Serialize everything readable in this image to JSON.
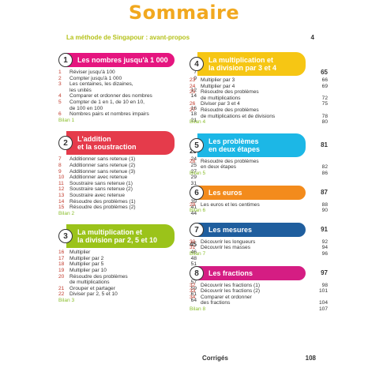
{
  "title": "Sommaire",
  "intro": {
    "text": "La méthode de Singapour : avant-propos",
    "page": "4"
  },
  "colors": {
    "title": "#f1a81f",
    "intro": "#b5c21a",
    "row_number": "#c0392b",
    "bilan": "#8bbe2e"
  },
  "left_sections": [
    {
      "num": "1",
      "title": "Les nombres jusqu'à 1 000",
      "page": "6",
      "items": [
        {
          "n": "1",
          "t": "Réviser jusqu'à 100",
          "p": "7"
        },
        {
          "n": "2",
          "t": "Compter jusqu'à 1 000",
          "p": "9"
        },
        {
          "n": "3",
          "t": "Les centaines, les dizaines,",
          "p": ""
        },
        {
          "n": "",
          "t": "les unités",
          "p": "12"
        },
        {
          "n": "4",
          "t": "Comparer et ordonner des nombres",
          "p": "14"
        },
        {
          "n": "5",
          "t": "Compter de 1 en 1, de 10 en 10,",
          "p": ""
        },
        {
          "n": "",
          "t": "de 100 en 100",
          "p": "16"
        },
        {
          "n": "6",
          "t": "Nombres pairs et nombres impairs",
          "p": "18"
        },
        {
          "n": "",
          "t": "Bilan 1",
          "p": "21"
        }
      ]
    },
    {
      "num": "2",
      "title_line1": "L'addition",
      "title_line2": "et la soustraction",
      "page": "23",
      "items": [
        {
          "n": "7",
          "t": "Additionner sans retenue (1)",
          "p": "24"
        },
        {
          "n": "8",
          "t": "Additionner sans retenue (2)",
          "p": "25"
        },
        {
          "n": "9",
          "t": "Additionner sans retenue (3)",
          "p": "27"
        },
        {
          "n": "10",
          "t": "Additionner avec retenue",
          "p": "29"
        },
        {
          "n": "11",
          "t": "Soustraire sans retenue (1)",
          "p": "31"
        },
        {
          "n": "12",
          "t": "Soustraire sans retenue (2)",
          "p": "34"
        },
        {
          "n": "13",
          "t": "Soustraire avec retenue",
          "p": "36"
        },
        {
          "n": "14",
          "t": "Résoudre des problèmes (1)",
          "p": "39"
        },
        {
          "n": "15",
          "t": "Résoudre des problèmes (2)",
          "p": "41"
        },
        {
          "n": "",
          "t": "Bilan 2",
          "p": "44"
        }
      ]
    },
    {
      "num": "3",
      "title_line1": "La multiplication et",
      "title_line2": "la division par 2, 5 et 10",
      "page": "45",
      "items": [
        {
          "n": "16",
          "t": "Multiplier",
          "p": "46"
        },
        {
          "n": "17",
          "t": "Multiplier par 2",
          "p": "48"
        },
        {
          "n": "18",
          "t": "Multiplier par 5",
          "p": "51"
        },
        {
          "n": "19",
          "t": "Multiplier par 10",
          "p": "54"
        },
        {
          "n": "20",
          "t": "Résoudre des problèmes",
          "p": ""
        },
        {
          "n": "",
          "t": "de multiplications",
          "p": "57"
        },
        {
          "n": "21",
          "t": "Grouper et partager",
          "p": "59"
        },
        {
          "n": "22",
          "t": "Diviser par 2, 5 et 10",
          "p": "61"
        },
        {
          "n": "",
          "t": "Bilan 3",
          "p": "64"
        }
      ]
    }
  ],
  "right_sections": [
    {
      "num": "4",
      "title_line1": "La multiplication et",
      "title_line2": "la division par 3 et 4",
      "page": "65",
      "items": [
        {
          "n": "23",
          "t": "Multiplier par 3",
          "p": "66"
        },
        {
          "n": "24",
          "t": "Multiplier par 4",
          "p": "69"
        },
        {
          "n": "25",
          "t": "Résoudre des problèmes",
          "p": ""
        },
        {
          "n": "",
          "t": "de multiplications",
          "p": "72"
        },
        {
          "n": "26",
          "t": "Diviser par 3 et 4",
          "p": "75"
        },
        {
          "n": "27",
          "t": "Résoudre des problèmes",
          "p": ""
        },
        {
          "n": "",
          "t": "de multiplications et de divisions",
          "p": "78"
        },
        {
          "n": "",
          "t": "Bilan 4",
          "p": "80"
        }
      ]
    },
    {
      "num": "5",
      "title_line1": "Les problèmes",
      "title_line2": "en deux étapes",
      "page": "81",
      "items": [
        {
          "n": "28",
          "t": "Résoudre des problèmes",
          "p": ""
        },
        {
          "n": "",
          "t": "en deux étapes",
          "p": "82"
        },
        {
          "n": "",
          "t": "Bilan 5",
          "p": "86"
        }
      ]
    },
    {
      "num": "6",
      "title": "Les euros",
      "page": "87",
      "items": [
        {
          "n": "29",
          "t": "Les euros et les centimes",
          "p": "88"
        },
        {
          "n": "",
          "t": "Bilan 6",
          "p": "90"
        }
      ]
    },
    {
      "num": "7",
      "title": "Les mesures",
      "page": "91",
      "items": [
        {
          "n": "30",
          "t": "Découvrir les longueurs",
          "p": "92"
        },
        {
          "n": "31",
          "t": "Découvrir les masses",
          "p": "94"
        },
        {
          "n": "",
          "t": "Bilan 7",
          "p": "96"
        }
      ]
    },
    {
      "num": "8",
      "title": "Les fractions",
      "page": "97",
      "items": [
        {
          "n": "32",
          "t": "Découvrir les fractions (1)",
          "p": "98"
        },
        {
          "n": "33",
          "t": "Découvrir les fractions (2)",
          "p": "101"
        },
        {
          "n": "34",
          "t": "Comparer et ordonner",
          "p": ""
        },
        {
          "n": "",
          "t": "des fractions",
          "p": "104"
        },
        {
          "n": "",
          "t": "Bilan 8",
          "p": "107"
        }
      ]
    }
  ],
  "corriges": {
    "label": "Corrigés",
    "page": "108"
  }
}
